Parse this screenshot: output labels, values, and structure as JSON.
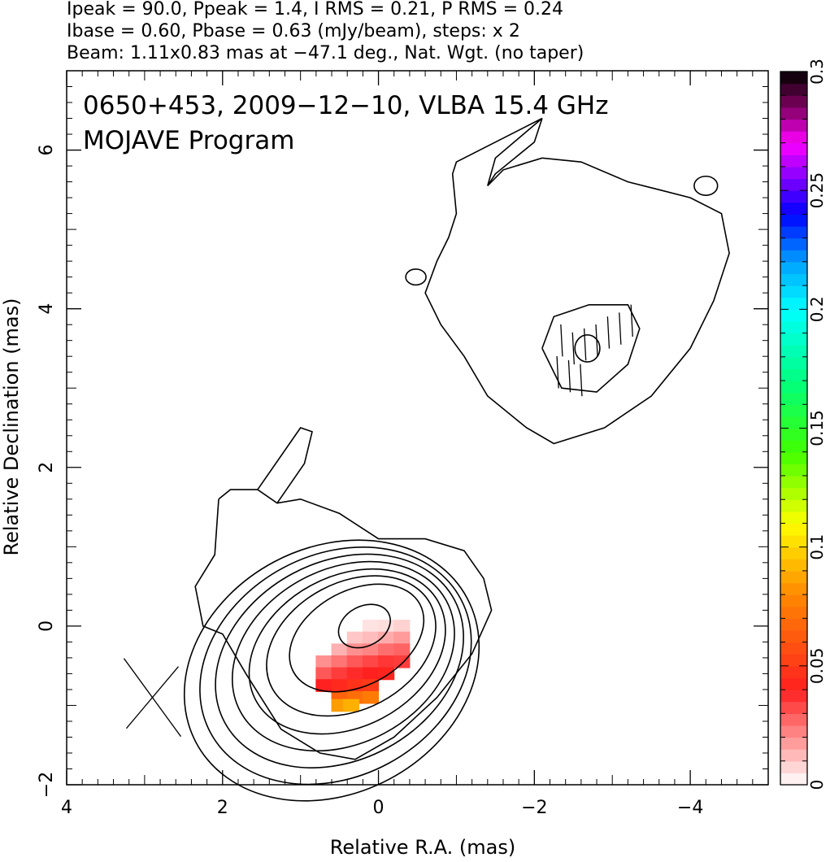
{
  "header": {
    "line1": "Ipeak = 90.0, Ppeak = 1.4, I RMS = 0.21, P RMS = 0.24",
    "line2": "Ibase = 0.60, Pbase = 0.63 (mJy/beam), steps: x 2",
    "line3": "Beam: 1.11x0.83 mas at −47.1 deg., Nat. Wgt. (no taper)"
  },
  "plot": {
    "title_line1": "0650+453, 2009−12−10, VLBA 15.4 GHz",
    "title_line2": "MOJAVE Program"
  },
  "chart_data": {
    "type": "heatmap",
    "xlabel": "Relative R.A. (mas)",
    "ylabel": "Relative Declination (mas)",
    "xlim": [
      4,
      -5.0
    ],
    "ylim": [
      -2,
      7
    ],
    "x_ticks": [
      "4",
      "2",
      "0",
      "−2",
      "−4"
    ],
    "x_tick_values": [
      4,
      2,
      0,
      -2,
      -4
    ],
    "y_ticks": [
      "−2",
      "0",
      "2",
      "4",
      "6"
    ],
    "y_tick_values": [
      -2,
      0,
      2,
      4,
      6
    ],
    "colorbar": {
      "range": [
        0,
        0.3
      ],
      "ticks": [
        "0",
        "0.05",
        "0.1",
        "0.15",
        "0.2",
        "0.25",
        "0.3"
      ],
      "tick_values": [
        0,
        0.05,
        0.1,
        0.15,
        0.2,
        0.25,
        0.3
      ],
      "stops": [
        {
          "v": 0.0,
          "c": "#ffffff"
        },
        {
          "v": 0.04,
          "c": "#ff2020"
        },
        {
          "v": 0.08,
          "c": "#ff8800"
        },
        {
          "v": 0.11,
          "c": "#ffff00"
        },
        {
          "v": 0.14,
          "c": "#40ff00"
        },
        {
          "v": 0.17,
          "c": "#00ff80"
        },
        {
          "v": 0.2,
          "c": "#00ffff"
        },
        {
          "v": 0.22,
          "c": "#00a0ff"
        },
        {
          "v": 0.24,
          "c": "#0000ff"
        },
        {
          "v": 0.255,
          "c": "#8000ff"
        },
        {
          "v": 0.27,
          "c": "#ff00ff"
        },
        {
          "v": 0.285,
          "c": "#800060"
        },
        {
          "v": 0.3,
          "c": "#000000"
        }
      ]
    },
    "core_contours": [
      {
        "cx": 0.18,
        "cy": 0.0,
        "rx": 0.35,
        "ry": 0.25
      },
      {
        "cx": 0.28,
        "cy": -0.15,
        "rx": 0.92,
        "ry": 0.6
      },
      {
        "cx": 0.35,
        "cy": -0.25,
        "rx": 1.15,
        "ry": 0.8
      },
      {
        "cx": 0.4,
        "cy": -0.32,
        "rx": 1.33,
        "ry": 0.95
      },
      {
        "cx": 0.45,
        "cy": -0.38,
        "rx": 1.5,
        "ry": 1.1
      },
      {
        "cx": 0.5,
        "cy": -0.44,
        "rx": 1.67,
        "ry": 1.25
      },
      {
        "cx": 0.55,
        "cy": -0.5,
        "rx": 1.82,
        "ry": 1.4
      },
      {
        "cx": 0.6,
        "cy": -0.56,
        "rx": 1.97,
        "ry": 1.55
      }
    ],
    "core_outer_contour": [
      [
        2.05,
        1.6
      ],
      [
        1.9,
        1.72
      ],
      [
        1.55,
        1.72
      ],
      [
        1.3,
        1.55
      ],
      [
        1.0,
        1.6
      ],
      [
        0.5,
        1.42
      ],
      [
        0.0,
        1.1
      ],
      [
        -0.6,
        1.1
      ],
      [
        -1.1,
        0.95
      ],
      [
        -1.35,
        0.6
      ],
      [
        -1.45,
        0.2
      ],
      [
        -1.2,
        -0.35
      ],
      [
        -0.75,
        -0.9
      ],
      [
        -0.2,
        -1.4
      ],
      [
        0.3,
        -1.68
      ],
      [
        0.75,
        -1.6
      ],
      [
        1.25,
        -1.3
      ],
      [
        1.7,
        -0.6
      ],
      [
        2.0,
        -0.1
      ],
      [
        2.25,
        0.0
      ],
      [
        2.35,
        0.5
      ],
      [
        2.1,
        0.9
      ],
      [
        2.05,
        1.6
      ]
    ],
    "core_finger_contour": [
      [
        1.55,
        1.72
      ],
      [
        1.0,
        2.5
      ],
      [
        0.85,
        2.45
      ],
      [
        0.95,
        2.05
      ],
      [
        1.3,
        1.55
      ]
    ],
    "jet_outer_contour": [
      [
        -2.1,
        6.4
      ],
      [
        -2.0,
        6.1
      ],
      [
        -1.5,
        5.7
      ],
      [
        -1.4,
        5.55
      ],
      [
        -1.5,
        5.9
      ],
      [
        -2.1,
        6.4
      ],
      [
        -2.1,
        6.4
      ],
      [
        -1.0,
        5.85
      ],
      [
        -0.95,
        5.7
      ],
      [
        -1.0,
        5.2
      ],
      [
        -0.9,
        4.9
      ],
      [
        -0.75,
        4.6
      ],
      [
        -0.6,
        4.2
      ],
      [
        -0.8,
        3.8
      ],
      [
        -1.1,
        3.4
      ],
      [
        -1.4,
        2.9
      ],
      [
        -1.9,
        2.5
      ],
      [
        -2.25,
        2.3
      ],
      [
        -2.9,
        2.5
      ],
      [
        -3.5,
        2.9
      ],
      [
        -4.0,
        3.5
      ],
      [
        -4.3,
        4.1
      ],
      [
        -4.5,
        4.7
      ],
      [
        -4.4,
        5.2
      ],
      [
        -4.0,
        5.4
      ],
      [
        -3.6,
        5.5
      ],
      [
        -3.2,
        5.6
      ],
      [
        -2.6,
        5.85
      ],
      [
        -2.1,
        5.9
      ],
      [
        -1.6,
        5.75
      ],
      [
        -1.4,
        5.55
      ]
    ],
    "jet_contour_2": [
      [
        -2.1,
        3.5
      ],
      [
        -2.25,
        3.9
      ],
      [
        -2.7,
        4.05
      ],
      [
        -3.2,
        4.05
      ],
      [
        -3.35,
        3.75
      ],
      [
        -3.2,
        3.3
      ],
      [
        -2.8,
        2.95
      ],
      [
        -2.35,
        3.0
      ],
      [
        -2.1,
        3.5
      ]
    ],
    "jet_contour_3": {
      "cx": -2.68,
      "cy": 3.5,
      "rx": 0.16,
      "ry": 0.17
    },
    "small_contours": [
      {
        "cx": -0.48,
        "cy": 4.4,
        "rx": 0.13,
        "ry": 0.1
      },
      {
        "cx": -4.2,
        "cy": 5.55,
        "rx": 0.15,
        "ry": 0.12
      }
    ],
    "polarization_vectors": [
      {
        "x": -2.35,
        "y": 3.6
      },
      {
        "x": -2.5,
        "y": 3.5
      },
      {
        "x": -2.65,
        "y": 3.55
      },
      {
        "x": -2.8,
        "y": 3.6
      },
      {
        "x": -2.95,
        "y": 3.7
      },
      {
        "x": -3.1,
        "y": 3.75
      },
      {
        "x": -3.25,
        "y": 3.85
      },
      {
        "x": -2.3,
        "y": 3.2
      },
      {
        "x": -2.45,
        "y": 3.15
      },
      {
        "x": -2.6,
        "y": 3.1
      }
    ],
    "fractional_polarization_pixels": [
      {
        "x": 0.1,
        "y": 0.0,
        "v": 0.005
      },
      {
        "x": -0.1,
        "y": 0.0,
        "v": 0.006
      },
      {
        "x": -0.3,
        "y": 0.0,
        "v": 0.008
      },
      {
        "x": 0.3,
        "y": -0.15,
        "v": 0.01
      },
      {
        "x": 0.1,
        "y": -0.15,
        "v": 0.012
      },
      {
        "x": -0.1,
        "y": -0.15,
        "v": 0.015
      },
      {
        "x": -0.3,
        "y": -0.15,
        "v": 0.018
      },
      {
        "x": 0.5,
        "y": -0.3,
        "v": 0.014
      },
      {
        "x": 0.3,
        "y": -0.3,
        "v": 0.02
      },
      {
        "x": 0.1,
        "y": -0.3,
        "v": 0.022
      },
      {
        "x": -0.1,
        "y": -0.3,
        "v": 0.026
      },
      {
        "x": -0.3,
        "y": -0.3,
        "v": 0.028
      },
      {
        "x": 0.7,
        "y": -0.45,
        "v": 0.02
      },
      {
        "x": 0.5,
        "y": -0.45,
        "v": 0.025
      },
      {
        "x": 0.3,
        "y": -0.45,
        "v": 0.03
      },
      {
        "x": 0.1,
        "y": -0.45,
        "v": 0.033
      },
      {
        "x": -0.1,
        "y": -0.45,
        "v": 0.036
      },
      {
        "x": -0.3,
        "y": -0.45,
        "v": 0.035
      },
      {
        "x": 0.7,
        "y": -0.6,
        "v": 0.03
      },
      {
        "x": 0.5,
        "y": -0.6,
        "v": 0.035
      },
      {
        "x": 0.3,
        "y": -0.6,
        "v": 0.038
      },
      {
        "x": 0.1,
        "y": -0.6,
        "v": 0.04
      },
      {
        "x": -0.1,
        "y": -0.6,
        "v": 0.042
      },
      {
        "x": 0.7,
        "y": -0.75,
        "v": 0.04
      },
      {
        "x": 0.5,
        "y": -0.75,
        "v": 0.044
      },
      {
        "x": 0.3,
        "y": -0.75,
        "v": 0.047
      },
      {
        "x": 0.1,
        "y": -0.75,
        "v": 0.05
      },
      {
        "x": 0.5,
        "y": -0.9,
        "v": 0.065
      },
      {
        "x": 0.3,
        "y": -0.9,
        "v": 0.07
      },
      {
        "x": 0.1,
        "y": -0.9,
        "v": 0.075
      },
      {
        "x": 0.5,
        "y": -1.0,
        "v": 0.085
      },
      {
        "x": 0.35,
        "y": -1.0,
        "v": 0.09
      }
    ],
    "beam": {
      "cx": 2.9,
      "cy": -0.9,
      "major": 1.11,
      "minor": 0.83,
      "pa": -47.1
    }
  }
}
